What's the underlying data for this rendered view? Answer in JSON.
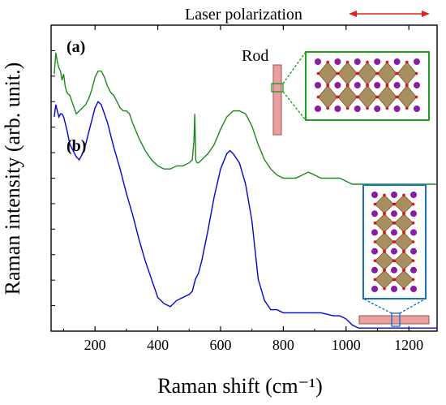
{
  "chart_data": {
    "type": "line",
    "title": "",
    "xlabel": "Raman shift (cm⁻¹)",
    "ylabel": "Raman intensity (arb. unit.)",
    "xlim": [
      60,
      1290
    ],
    "ylim": [
      0,
      1
    ],
    "x_ticks": [
      200,
      400,
      600,
      800,
      1000,
      1200
    ],
    "grid": false,
    "legend": "none",
    "annotations": {
      "laser": "Laser polarization",
      "panel_a": "(a)",
      "panel_b": "(b)",
      "rod": "Rod"
    },
    "colors": {
      "series_a": "#1a8a1a",
      "series_b": "#0000e6",
      "laser_arrow": "#e02020",
      "rod": "#e8a0a0",
      "highlight_green": "#1aa51a",
      "highlight_blue": "#1a6fc8",
      "octahedra": "#8b6a2a",
      "atom_purple": "#8a1aa8",
      "atom_red": "#e01010"
    },
    "series": [
      {
        "id": "a",
        "x": [
          70,
          75,
          80,
          85,
          90,
          95,
          100,
          105,
          110,
          120,
          130,
          140,
          150,
          160,
          170,
          180,
          190,
          200,
          210,
          220,
          230,
          240,
          250,
          260,
          270,
          280,
          290,
          300,
          310,
          320,
          340,
          360,
          380,
          400,
          420,
          440,
          460,
          480,
          500,
          510,
          515,
          518,
          521,
          525,
          530,
          540,
          560,
          580,
          600,
          620,
          640,
          660,
          680,
          700,
          720,
          740,
          760,
          780,
          800,
          840,
          880,
          900,
          920,
          950,
          980,
          1000,
          1020,
          1050,
          1100,
          1150,
          1200,
          1250,
          1290
        ],
        "y": [
          0.84,
          0.91,
          0.88,
          0.86,
          0.85,
          0.82,
          0.84,
          0.8,
          0.78,
          0.77,
          0.74,
          0.71,
          0.72,
          0.73,
          0.74,
          0.76,
          0.79,
          0.83,
          0.85,
          0.85,
          0.83,
          0.8,
          0.78,
          0.77,
          0.75,
          0.73,
          0.72,
          0.72,
          0.71,
          0.68,
          0.63,
          0.59,
          0.56,
          0.54,
          0.53,
          0.53,
          0.54,
          0.54,
          0.55,
          0.56,
          0.62,
          0.71,
          0.56,
          0.55,
          0.55,
          0.56,
          0.58,
          0.61,
          0.66,
          0.7,
          0.72,
          0.72,
          0.71,
          0.67,
          0.61,
          0.56,
          0.53,
          0.51,
          0.5,
          0.5,
          0.52,
          0.51,
          0.5,
          0.5,
          0.5,
          0.49,
          0.48,
          0.48,
          0.48,
          0.48,
          0.48,
          0.48,
          0.48
        ]
      },
      {
        "id": "b",
        "x": [
          70,
          75,
          80,
          85,
          90,
          95,
          100,
          110,
          120,
          130,
          140,
          150,
          160,
          170,
          180,
          190,
          200,
          210,
          220,
          230,
          240,
          250,
          260,
          280,
          300,
          320,
          340,
          360,
          380,
          400,
          420,
          440,
          460,
          480,
          500,
          510,
          520,
          530,
          540,
          560,
          580,
          600,
          620,
          630,
          640,
          660,
          680,
          700,
          720,
          740,
          760,
          780,
          800,
          840,
          880,
          920,
          960,
          980,
          1000,
          1020,
          1040,
          1080,
          1150,
          1200,
          1250,
          1290
        ],
        "y": [
          0.7,
          0.74,
          0.72,
          0.7,
          0.71,
          0.71,
          0.7,
          0.66,
          0.61,
          0.59,
          0.57,
          0.56,
          0.58,
          0.61,
          0.65,
          0.69,
          0.73,
          0.75,
          0.74,
          0.71,
          0.68,
          0.64,
          0.6,
          0.53,
          0.45,
          0.38,
          0.3,
          0.23,
          0.17,
          0.11,
          0.09,
          0.08,
          0.1,
          0.11,
          0.12,
          0.13,
          0.17,
          0.19,
          0.23,
          0.33,
          0.44,
          0.53,
          0.58,
          0.59,
          0.58,
          0.55,
          0.48,
          0.36,
          0.17,
          0.1,
          0.07,
          0.07,
          0.06,
          0.06,
          0.06,
          0.06,
          0.05,
          0.05,
          0.04,
          0.02,
          0.01,
          0.01,
          0.01,
          0.01,
          0.01,
          0.01
        ]
      }
    ]
  }
}
